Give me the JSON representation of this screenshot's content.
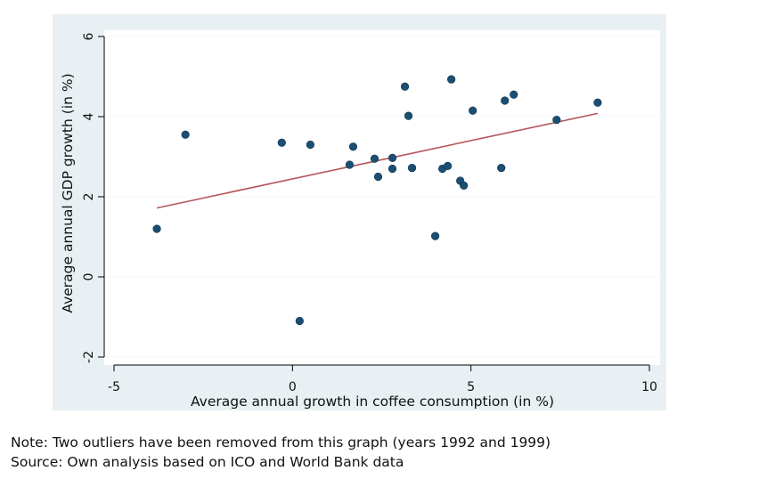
{
  "chart_data": {
    "type": "scatter",
    "title": "",
    "xlabel": "Average annual growth in coffee consumption (in %)",
    "ylabel": "Average annual GDP growth (in %)",
    "xlim": [
      -5,
      10
    ],
    "ylim": [
      -2,
      6
    ],
    "x_ticks": [
      "-5",
      "0",
      "5",
      "10"
    ],
    "y_ticks": [
      "-2",
      "0",
      "2",
      "4",
      "6"
    ],
    "x_tick_values": [
      -5,
      0,
      5,
      10
    ],
    "y_tick_values": [
      -2,
      0,
      2,
      4,
      6
    ],
    "grid": true,
    "colors": {
      "plot_background": "#e8f0f3",
      "outer_background": "#ffffff",
      "points": "#1b4f72",
      "fit_line": "#b5565a",
      "grid": "#f6f9fa"
    },
    "points": [
      {
        "x": -3.8,
        "y": 1.2
      },
      {
        "x": -3.0,
        "y": 3.55
      },
      {
        "x": -0.3,
        "y": 3.35
      },
      {
        "x": 0.2,
        "y": -1.1
      },
      {
        "x": 0.5,
        "y": 3.3
      },
      {
        "x": 1.6,
        "y": 2.8
      },
      {
        "x": 1.7,
        "y": 3.25
      },
      {
        "x": 2.3,
        "y": 2.95
      },
      {
        "x": 2.4,
        "y": 2.5
      },
      {
        "x": 2.8,
        "y": 2.97
      },
      {
        "x": 2.8,
        "y": 2.7
      },
      {
        "x": 3.15,
        "y": 4.75
      },
      {
        "x": 3.25,
        "y": 4.02
      },
      {
        "x": 3.35,
        "y": 2.72
      },
      {
        "x": 4.0,
        "y": 1.02
      },
      {
        "x": 4.2,
        "y": 2.7
      },
      {
        "x": 4.35,
        "y": 2.77
      },
      {
        "x": 4.45,
        "y": 4.93
      },
      {
        "x": 4.7,
        "y": 2.4
      },
      {
        "x": 4.8,
        "y": 2.28
      },
      {
        "x": 5.05,
        "y": 4.15
      },
      {
        "x": 5.85,
        "y": 2.72
      },
      {
        "x": 5.95,
        "y": 4.4
      },
      {
        "x": 6.2,
        "y": 4.55
      },
      {
        "x": 7.4,
        "y": 3.92
      },
      {
        "x": 8.55,
        "y": 4.35
      }
    ],
    "fit_line": {
      "x": [
        -3.8,
        8.55
      ],
      "y": [
        1.72,
        4.08
      ]
    }
  },
  "notes": {
    "note": "Note: Two outliers have been removed from this graph (years 1992 and 1999)",
    "source": "Source: Own analysis based on ICO and World Bank data"
  }
}
